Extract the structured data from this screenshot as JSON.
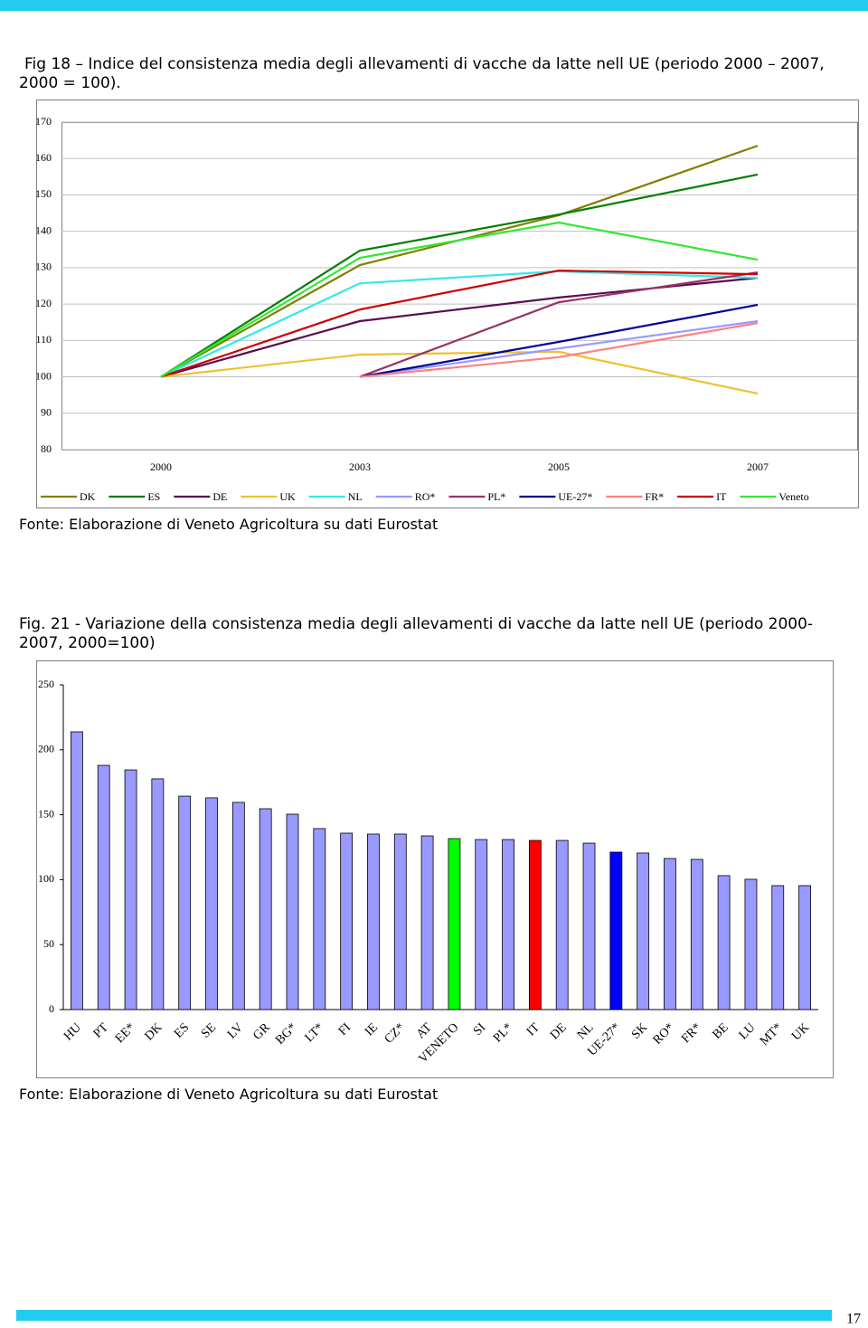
{
  "page_number": "17",
  "chart_data": [
    {
      "type": "line",
      "title": "Fig 18 – Indice del consistenza media degli allevamenti di vacche da latte nell UE (periodo 2000 – 2007, 2000 = 100).",
      "source": "Fonte: Elaborazione di Veneto Agricoltura su dati Eurostat",
      "categories": [
        "2000",
        "2003",
        "2005",
        "2007"
      ],
      "series": [
        {
          "name": "DK",
          "color": "#808000",
          "values": [
            100,
            130.7,
            144.4,
            163.5
          ]
        },
        {
          "name": "ES",
          "color": "#008000",
          "values": [
            100,
            134.7,
            144.6,
            155.6
          ]
        },
        {
          "name": "DE",
          "color": "#5a0a50",
          "values": [
            100,
            115.3,
            121.8,
            127.2
          ]
        },
        {
          "name": "UK",
          "color": "#f0c030",
          "values": [
            100,
            106.1,
            106.9,
            95.4
          ]
        },
        {
          "name": "NL",
          "color": "#33e8e8",
          "values": [
            100,
            125.7,
            129,
            127.2
          ]
        },
        {
          "name": "RO*",
          "color": "#9999ff",
          "values": [
            null,
            100,
            107.8,
            115.3
          ]
        },
        {
          "name": "PL*",
          "color": "#993366",
          "values": [
            null,
            100,
            120.5,
            128.7
          ]
        },
        {
          "name": "UE-27*",
          "color": "#000099",
          "values": [
            null,
            100,
            109.6,
            119.8
          ]
        },
        {
          "name": "FR*",
          "color": "#ff8080",
          "values": [
            null,
            100,
            105.4,
            114.8
          ]
        },
        {
          "name": "IT",
          "color": "#cc0000",
          "values": [
            100,
            118.5,
            129.2,
            128.2
          ]
        },
        {
          "name": "Veneto",
          "color": "#33e633",
          "values": [
            100,
            132.7,
            142.4,
            132.2
          ]
        }
      ],
      "ylim": [
        80,
        170
      ],
      "yticks": [
        80,
        90,
        100,
        110,
        120,
        130,
        140,
        150,
        160,
        170
      ],
      "grid": true,
      "legend": "bottom"
    },
    {
      "type": "bar",
      "title": "Fig. 21 - Variazione della consistenza media  degli allevamenti di vacche da latte nell UE (periodo 2000-2007, 2000=100)",
      "source": "Fonte: Elaborazione di Veneto Agricoltura su dati Eurostat",
      "categories": [
        "HU",
        "PT",
        "EE*",
        "DK",
        "ES",
        "SE",
        "LV",
        "GR",
        "BG*",
        "LT*",
        "FI",
        "IE",
        "CZ*",
        "AT",
        "VENETO",
        "SI",
        "PL*",
        "IT",
        "DE",
        "NL",
        "UE-27*",
        "SK",
        "RO*",
        "FR*",
        "BE",
        "LU",
        "MT*",
        "UK"
      ],
      "values": [
        213.8,
        188,
        184.5,
        177.6,
        164.3,
        163,
        159.5,
        154.6,
        150.4,
        139.3,
        135.8,
        135.1,
        135.1,
        133.7,
        131.6,
        130.9,
        130.9,
        130.2,
        130.2,
        128.1,
        121.2,
        120.5,
        116.3,
        115.6,
        103.1,
        100.3,
        95.4,
        95.4
      ],
      "colors": [
        "#9999ff",
        "#9999ff",
        "#9999ff",
        "#9999ff",
        "#9999ff",
        "#9999ff",
        "#9999ff",
        "#9999ff",
        "#9999ff",
        "#9999ff",
        "#9999ff",
        "#9999ff",
        "#9999ff",
        "#9999ff",
        "#00ff00",
        "#9999ff",
        "#9999ff",
        "#ff0000",
        "#9999ff",
        "#9999ff",
        "#0000ff",
        "#9999ff",
        "#9999ff",
        "#9999ff",
        "#9999ff",
        "#9999ff",
        "#9999ff",
        "#9999ff"
      ],
      "ylim": [
        0,
        250
      ],
      "yticks": [
        0,
        50,
        100,
        150,
        200,
        250
      ],
      "grid": false
    }
  ]
}
